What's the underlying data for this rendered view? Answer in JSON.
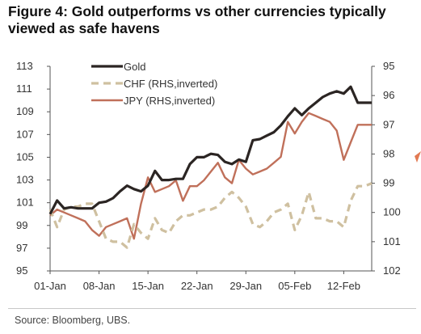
{
  "title": "Figure 4: Gold outperforms vs other currencies typically viewed as safe havens",
  "source": "Source: Bloomberg, UBS.",
  "colors": {
    "gold": "#2b2523",
    "chf": "#cfc0a0",
    "jpy": "#c0705a",
    "axis": "#555555",
    "edge_mark": "#e27a52"
  },
  "chart_data": {
    "type": "line",
    "x_tick_labels": [
      "01-Jan",
      "08-Jan",
      "15-Jan",
      "22-Jan",
      "29-Jan",
      "05-Feb",
      "12-Feb"
    ],
    "x_tick_days": [
      1,
      8,
      15,
      22,
      29,
      36,
      43
    ],
    "xlim": [
      1,
      47
    ],
    "y_left": {
      "lim": [
        95,
        113
      ],
      "ticks": [
        95,
        97,
        99,
        101,
        103,
        105,
        107,
        109,
        111,
        113
      ]
    },
    "y_right": {
      "lim": [
        95,
        102
      ],
      "inverted": true,
      "ticks": [
        95,
        96,
        97,
        98,
        99,
        100,
        101,
        102
      ]
    },
    "legend_position": "top-left",
    "grid": false,
    "series": [
      {
        "name": "Gold",
        "axis": "left",
        "style": "solid",
        "x": [
          1,
          2,
          3,
          4,
          5,
          6,
          7,
          8,
          9,
          10,
          11,
          12,
          13,
          14,
          15,
          16,
          17,
          18,
          19,
          20,
          21,
          22,
          23,
          24,
          25,
          26,
          27,
          28,
          29,
          30,
          31,
          32,
          33,
          34,
          35,
          36,
          37,
          38,
          39,
          40,
          41,
          42,
          43,
          44,
          45,
          46,
          47
        ],
        "y": [
          100.0,
          101.2,
          100.5,
          100.6,
          100.5,
          100.5,
          100.5,
          101.0,
          101.1,
          101.4,
          102.0,
          102.5,
          102.2,
          102.0,
          102.5,
          103.8,
          103.0,
          103.0,
          103.1,
          103.1,
          104.4,
          105.0,
          105.0,
          105.3,
          105.2,
          104.6,
          104.4,
          104.8,
          104.6,
          106.5,
          106.6,
          106.9,
          107.2,
          107.8,
          108.6,
          109.3,
          108.7,
          109.3,
          109.8,
          110.3,
          110.6,
          110.8,
          110.6,
          111.2,
          109.8,
          109.8,
          109.8
        ]
      },
      {
        "name": "CHF (RHS,inverted)",
        "axis": "right",
        "style": "dashed",
        "x": [
          1,
          2,
          3,
          4,
          5,
          6,
          7,
          8,
          9,
          10,
          11,
          12,
          13,
          14,
          15,
          16,
          17,
          18,
          19,
          20,
          21,
          22,
          23,
          24,
          25,
          26,
          27,
          28,
          29,
          30,
          31,
          32,
          33,
          34,
          35,
          36,
          37,
          38,
          39,
          40,
          41,
          42,
          43,
          44,
          45,
          46,
          47
        ],
        "y": [
          99.9,
          100.5,
          99.9,
          99.8,
          99.8,
          99.7,
          99.7,
          100.3,
          100.9,
          101.0,
          101.0,
          101.2,
          100.4,
          100.7,
          100.9,
          100.2,
          100.6,
          100.7,
          100.3,
          100.1,
          100.1,
          100.0,
          99.9,
          99.9,
          99.8,
          99.5,
          99.3,
          99.5,
          99.8,
          100.4,
          100.5,
          100.3,
          100.0,
          99.9,
          99.7,
          100.6,
          100.1,
          99.3,
          100.2,
          100.2,
          100.3,
          100.3,
          100.5,
          99.6,
          99.1,
          99.1,
          99.0
        ]
      },
      {
        "name": "JPY (RHS,inverted)",
        "axis": "right",
        "style": "solid",
        "x": [
          1,
          2,
          3,
          4,
          5,
          6,
          7,
          8,
          9,
          10,
          11,
          12,
          13,
          14,
          15,
          16,
          17,
          18,
          19,
          20,
          21,
          22,
          23,
          24,
          25,
          26,
          27,
          28,
          29,
          30,
          31,
          32,
          33,
          34,
          35,
          36,
          37,
          38,
          39,
          40,
          41,
          42,
          43,
          44,
          45,
          46,
          47
        ],
        "y": [
          100.1,
          99.9,
          100.0,
          100.1,
          100.2,
          100.3,
          100.6,
          100.8,
          100.5,
          100.4,
          100.3,
          100.2,
          100.9,
          99.7,
          98.8,
          99.3,
          99.2,
          99.1,
          98.9,
          99.6,
          99.1,
          99.1,
          98.9,
          98.6,
          98.3,
          98.8,
          99.0,
          98.2,
          98.5,
          98.7,
          98.6,
          98.5,
          98.3,
          98.1,
          96.9,
          97.3,
          96.9,
          96.6,
          96.7,
          96.8,
          96.9,
          97.2,
          98.2,
          97.6,
          97.0,
          97.0,
          97.0
        ]
      }
    ]
  }
}
